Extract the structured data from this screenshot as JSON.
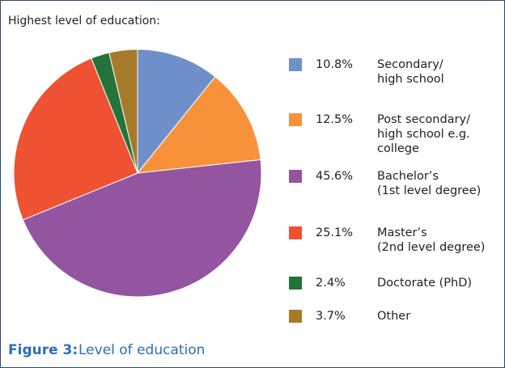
{
  "chart_data": {
    "type": "pie",
    "title": "Highest level of education:",
    "categories": [
      "Secondary/\nhigh school",
      "Post secondary/\nhigh school e.g.\ncollege",
      "Bachelor’s\n(1st level degree)",
      "Master’s\n(2nd level degree)",
      "Doctorate (PhD)",
      "Other"
    ],
    "values": [
      10.8,
      12.5,
      45.6,
      25.1,
      2.4,
      3.7
    ],
    "value_labels": [
      "10.8%",
      "12.5%",
      "45.6%",
      "25.1%",
      "2.4%",
      "3.7%"
    ],
    "colors": [
      "#6f8fcb",
      "#f7923a",
      "#9455a0",
      "#ef5133",
      "#23733a",
      "#a67a2a"
    ],
    "caption_label": "Figure 3:",
    "caption": "Level of education"
  }
}
